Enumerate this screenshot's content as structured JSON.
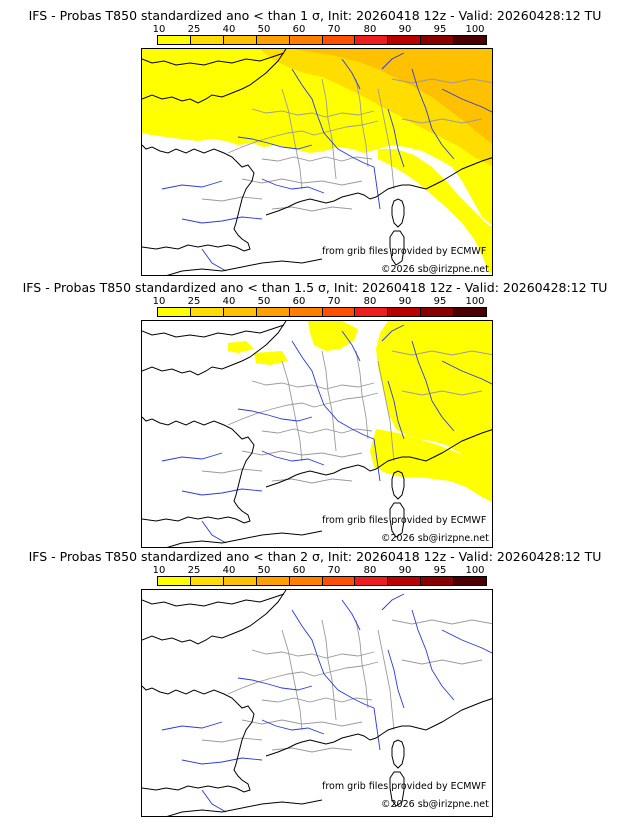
{
  "panels": [
    {
      "title": "IFS - Probas T850  standardized ano < than 1 σ, Init: 20260418 12z - Valid: 20260428:12 TU",
      "coverage_level": "widespread",
      "credit_source": "from grib files provided by ECMWF",
      "credit_copyright": "©2026 sb@irizpne.net"
    },
    {
      "title": "IFS - Probas T850  standardized ano < than 1.5 σ, Init: 20260418 12z - Valid: 20260428:12 TU",
      "coverage_level": "eastern",
      "credit_source": "from grib files provided by ECMWF",
      "credit_copyright": "©2026 sb@irizpne.net"
    },
    {
      "title": "IFS - Probas T850  standardized ano < than 2 σ, Init: 20260418 12z - Valid: 20260428:12 TU",
      "coverage_level": "none",
      "credit_source": "from grib files provided by ECMWF",
      "credit_copyright": "©2026 sb@irizpne.net"
    }
  ],
  "scale": {
    "labels": [
      "10",
      "25",
      "40",
      "50",
      "60",
      "70",
      "80",
      "90",
      "95",
      "100"
    ],
    "colors": [
      "#ffff00",
      "#ffdd00",
      "#ffc000",
      "#ffa000",
      "#ff8000",
      "#ff5000",
      "#ee1c1c",
      "#bb0000",
      "#880000",
      "#4a0000"
    ]
  },
  "map_colors": {
    "coastline": "#000000",
    "rivers": "#2a3adc",
    "borders": "#9a9a9a"
  }
}
